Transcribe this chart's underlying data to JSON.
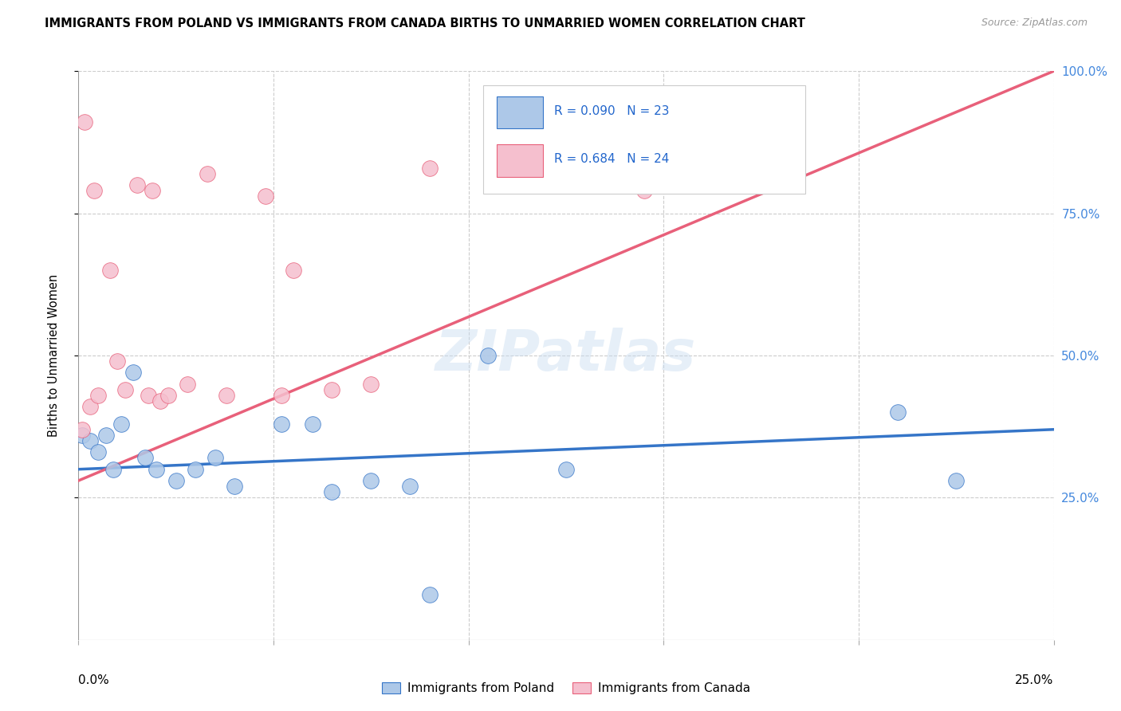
{
  "title": "IMMIGRANTS FROM POLAND VS IMMIGRANTS FROM CANADA BIRTHS TO UNMARRIED WOMEN CORRELATION CHART",
  "source": "Source: ZipAtlas.com",
  "ylabel": "Births to Unmarried Women",
  "legend_label_blue": "Immigrants from Poland",
  "legend_label_pink": "Immigrants from Canada",
  "R_blue": "0.090",
  "N_blue": "23",
  "R_pink": "0.684",
  "N_pink": "24",
  "blue_color": "#adc8e8",
  "pink_color": "#f5bfce",
  "blue_line_color": "#3575c8",
  "pink_line_color": "#e8607a",
  "watermark": "ZIPatlas",
  "xlim": [
    0,
    25
  ],
  "ylim": [
    0,
    100
  ],
  "yticks": [
    25,
    50,
    75,
    100
  ],
  "ytick_labels": [
    "25.0%",
    "50.0%",
    "75.0%",
    "100.0%"
  ],
  "poland_x": [
    0.1,
    0.3,
    0.5,
    0.7,
    0.9,
    1.1,
    1.4,
    1.7,
    2.0,
    2.5,
    3.0,
    3.5,
    4.0,
    5.2,
    6.0,
    6.5,
    7.5,
    9.0,
    10.5,
    12.5,
    21.0,
    22.5,
    8.5
  ],
  "poland_y": [
    36,
    35,
    33,
    36,
    30,
    38,
    47,
    32,
    30,
    28,
    30,
    32,
    27,
    38,
    38,
    26,
    28,
    8,
    50,
    30,
    40,
    28,
    27
  ],
  "canada_x": [
    0.1,
    0.3,
    0.5,
    0.8,
    1.0,
    1.2,
    1.5,
    1.8,
    2.1,
    2.3,
    2.8,
    3.3,
    3.8,
    4.8,
    5.5,
    6.5,
    7.5,
    9.0,
    14.5,
    15.5,
    0.15,
    0.4,
    1.9,
    5.2
  ],
  "canada_y": [
    37,
    41,
    43,
    65,
    49,
    44,
    80,
    43,
    42,
    43,
    45,
    82,
    43,
    78,
    65,
    44,
    45,
    83,
    79,
    80,
    91,
    79,
    79,
    43
  ]
}
